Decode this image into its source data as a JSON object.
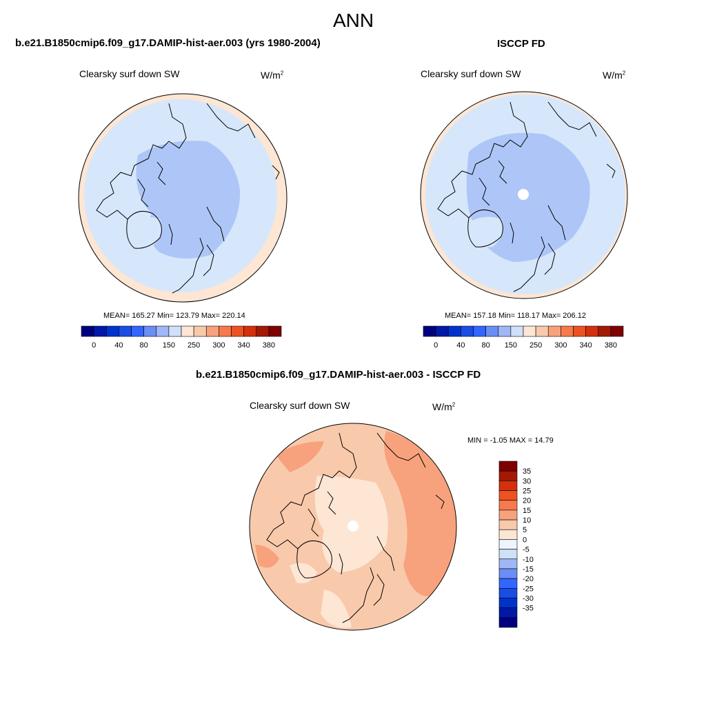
{
  "figure": {
    "season": "ANN",
    "variable": "Clearsky surf down SW",
    "units_base": "W/m",
    "units_exp": "2"
  },
  "panels": [
    {
      "title": "b.e21.B1850cmip6.f09_g17.DAMIP-hist-aer.003 (yrs 1980-2004)",
      "stats": "MEAN= 165.27  Min= 123.79  Max= 220.14"
    },
    {
      "title": "ISCCP FD",
      "stats": "MEAN= 157.18  Min= 118.17  Max= 206.12"
    },
    {
      "title": "b.e21.B1850cmip6.f09_g17.DAMIP-hist-aer.003 - ISCCP FD",
      "stats": "MIN =  -1.05 MAX =  14.79"
    }
  ],
  "abs_colorbar": {
    "colors": [
      "#00007f",
      "#0019a6",
      "#0033cc",
      "#1a4de6",
      "#3366ff",
      "#6b8ef5",
      "#9fb7f5",
      "#cfe0f8",
      "#fde6d4",
      "#f9c9ab",
      "#f7a27c",
      "#f67a4c",
      "#ee5222",
      "#d4300d",
      "#a21a05",
      "#7f0000"
    ],
    "ticks": [
      "0",
      "40",
      "80",
      "150",
      "250",
      "300",
      "340",
      "380"
    ]
  },
  "diff_colorbar": {
    "colors": [
      "#00007f",
      "#0019a6",
      "#0033cc",
      "#1a4de6",
      "#3366ff",
      "#6b8ef5",
      "#9fb7f5",
      "#cfe0f8",
      "#eef4fb",
      "#fde6d4",
      "#f9c9ab",
      "#f7a27c",
      "#f67a4c",
      "#ee5222",
      "#d4300d",
      "#a21a05",
      "#7f0000"
    ],
    "ticks": [
      "35",
      "30",
      "25",
      "20",
      "15",
      "10",
      "5",
      "0",
      "-5",
      "-10",
      "-15",
      "-20",
      "-25",
      "-30",
      "-35"
    ]
  },
  "map_colors": {
    "low_blue": "#aec6f7",
    "light_blue": "#d6e7fb",
    "peach": "#fde6d4",
    "diff_low": "#fde6d4",
    "diff_mid": "#f9c9ab",
    "diff_high": "#f7a27c"
  }
}
